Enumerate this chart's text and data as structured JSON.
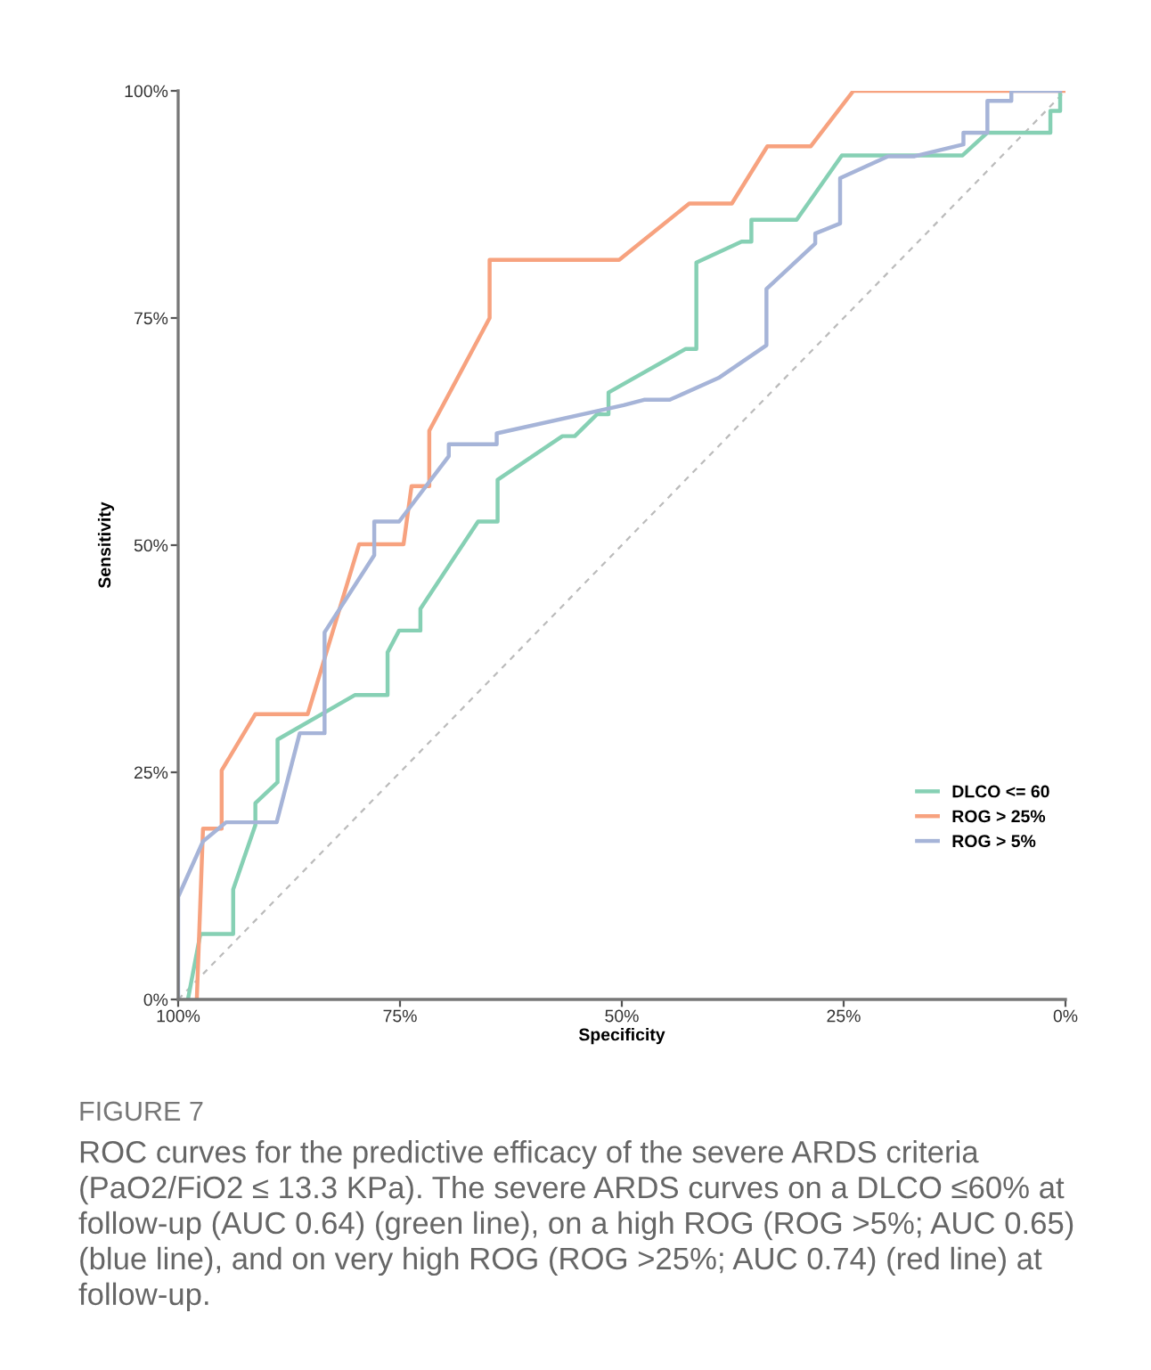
{
  "chart_data": {
    "type": "line",
    "xlabel": "Specificity",
    "ylabel": "Sensitivity",
    "xlim": [
      100,
      0
    ],
    "ylim": [
      0,
      100
    ],
    "xticks": [
      {
        "value": 100,
        "label": "100%"
      },
      {
        "value": 75,
        "label": "75%"
      },
      {
        "value": 50,
        "label": "50%"
      },
      {
        "value": 25,
        "label": "25%"
      },
      {
        "value": 0,
        "label": "0%"
      }
    ],
    "yticks": [
      {
        "value": 0,
        "label": "0%"
      },
      {
        "value": 25,
        "label": "25%"
      },
      {
        "value": 50,
        "label": "50%"
      },
      {
        "value": 75,
        "label": "75%"
      },
      {
        "value": 100,
        "label": "100%"
      }
    ],
    "grid": false,
    "legend": "bottom right",
    "marker": "none",
    "series": [
      {
        "name": "DLCO <= 60",
        "color": "#86d0b4",
        "line_style": "solid",
        "x": [
          98.9,
          97.5,
          93.8,
          93.8,
          91.3,
          91.3,
          88.8,
          88.8,
          80.1,
          76.4,
          76.4,
          75.1,
          72.7,
          72.7,
          66.2,
          64.0,
          64.0,
          56.7,
          55.3,
          52.8,
          51.5,
          51.5,
          42.8,
          41.6,
          41.6,
          36.5,
          35.4,
          35.4,
          30.3,
          25.2,
          11.6,
          8.8,
          1.7,
          1.7,
          0.6,
          0.6
        ],
        "values": [
          0,
          7.2,
          7.2,
          12.1,
          19.2,
          21.6,
          23.9,
          28.6,
          33.5,
          33.5,
          38.2,
          40.6,
          40.6,
          43.0,
          52.6,
          52.6,
          57.2,
          62.0,
          62.0,
          64.4,
          64.4,
          66.8,
          71.6,
          71.6,
          81.1,
          83.4,
          83.4,
          85.8,
          85.8,
          92.9,
          92.9,
          95.4,
          95.4,
          97.8,
          97.8,
          100
        ]
      },
      {
        "name": "ROG > 25%",
        "color": "#f7a27f",
        "line_style": "solid",
        "x": [
          97.9,
          97.2,
          95.1,
          95.1,
          91.3,
          85.4,
          79.6,
          74.6,
          73.7,
          71.7,
          71.7,
          64.9,
          64.9,
          50.3,
          42.4,
          37.6,
          33.6,
          28.7,
          23.9,
          0
        ],
        "values": [
          0,
          18.8,
          18.8,
          25.2,
          31.4,
          31.4,
          50.1,
          50.1,
          56.5,
          56.5,
          62.6,
          75.0,
          81.4,
          81.4,
          87.6,
          87.6,
          93.9,
          93.9,
          100,
          100
        ]
      },
      {
        "name": "ROG > 5%",
        "color": "#a6b4d8",
        "line_style": "solid",
        "x": [
          100,
          100,
          97.2,
          94.6,
          88.9,
          86.3,
          83.5,
          83.5,
          77.9,
          77.9,
          75.1,
          69.5,
          69.5,
          64.1,
          64.1,
          49.8,
          47.5,
          44.6,
          39.1,
          33.7,
          33.7,
          28.2,
          28.2,
          25.4,
          25.4,
          20.0,
          17.0,
          11.5,
          11.5,
          8.8,
          8.8,
          6.1,
          6.1,
          0.6
        ],
        "values": [
          0,
          11.3,
          17.4,
          19.5,
          19.5,
          29.3,
          29.3,
          40.4,
          48.9,
          52.6,
          52.6,
          59.8,
          61.1,
          61.1,
          62.3,
          65.4,
          66.0,
          66.0,
          68.4,
          72.0,
          78.2,
          83.2,
          84.3,
          85.4,
          90.4,
          92.8,
          92.8,
          94.1,
          95.4,
          95.4,
          98.9,
          98.9,
          100,
          100
        ]
      },
      {
        "color": "#bbbbbb",
        "line_style": "dashed",
        "x": [
          100,
          0
        ],
        "values": [
          0,
          100
        ]
      }
    ],
    "annotations": [
      "FIGURE 7",
      "ROC curves for the predictive efficacy of the severe ARDS criteria (PaO2/FiO2 ≤ 13.3 KPa). The severe ARDS curves on a DLCO ≤60% at follow-up (AUC 0.64) (green line), on a high ROG (ROG >5%; AUC 0.65) (blue line), and on very high ROG (ROG >25%; AUC 0.74) (red line) at follow-up."
    ]
  }
}
